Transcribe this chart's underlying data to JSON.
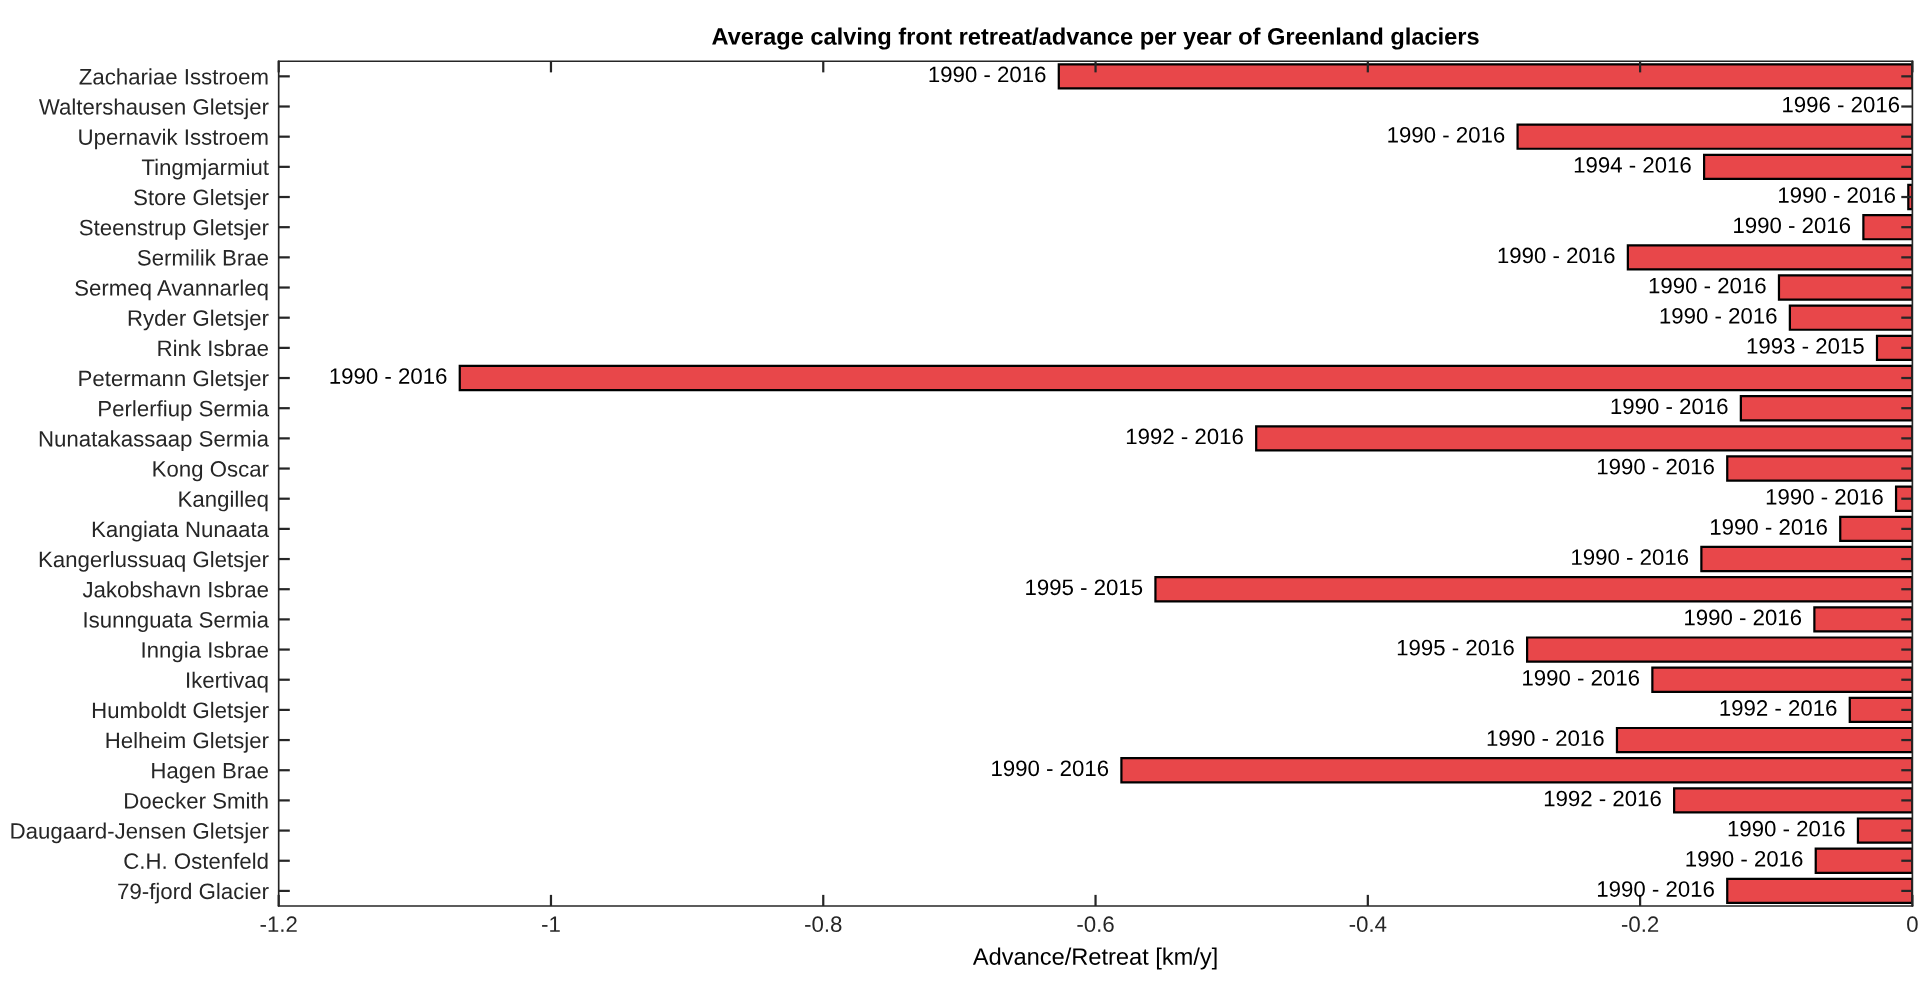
{
  "chart_data": {
    "type": "bar",
    "orientation": "horizontal",
    "title": "Average calving front retreat/advance per year of Greenland glaciers",
    "xlabel": "Advance/Retreat [km/y]",
    "categories": [
      "Zachariae Isstroem",
      "Waltershausen Gletsjer",
      "Upernavik Isstroem",
      "Tingmjarmiut",
      "Store Gletsjer",
      "Steenstrup Gletsjer",
      "Sermilik Brae",
      "Sermeq Avannarleq",
      "Ryder Gletsjer",
      "Rink Isbrae",
      "Petermann Gletsjer",
      "Perlerfiup Sermia",
      "Nunatakassaap Sermia",
      "Kong Oscar",
      "Kangilleq",
      "Kangiata Nunaata",
      "Kangerlussuaq Gletsjer",
      "Jakobshavn Isbrae",
      "Isunnguata Sermia",
      "Inngia Isbrae",
      "Ikertivaq",
      "Humboldt Gletsjer",
      "Helheim Gletsjer",
      "Hagen Brae",
      "Doecker Smith",
      "Daugaard-Jensen Gletsjer",
      "C.H. Ostenfeld",
      "79-fjord Glacier"
    ],
    "values": [
      -0.627,
      null,
      -0.29,
      -0.153,
      -0.003,
      -0.036,
      -0.209,
      -0.098,
      -0.09,
      -0.026,
      -1.067,
      -0.126,
      -0.482,
      -0.136,
      -0.012,
      -0.053,
      -0.155,
      -0.556,
      -0.072,
      -0.283,
      -0.191,
      -0.046,
      -0.217,
      -0.581,
      -0.175,
      -0.04,
      -0.071,
      -0.136
    ],
    "annotations": [
      {
        "text": "1990 - 2016",
        "x": -0.627,
        "y": "Zachariae Isstroem"
      },
      {
        "text": "1996 - 2016",
        "x": 0,
        "y": "Waltershausen Gletsjer"
      },
      {
        "text": "1990 - 2016",
        "x": -0.29,
        "y": "Upernavik Isstroem"
      },
      {
        "text": "1994 - 2016",
        "x": -0.153,
        "y": "Tingmjarmiut"
      },
      {
        "text": "1990 - 2016",
        "x": -0.003,
        "y": "Store Gletsjer"
      },
      {
        "text": "1990 - 2016",
        "x": -0.036,
        "y": "Steenstrup Gletsjer"
      },
      {
        "text": "1990 - 2016",
        "x": -0.209,
        "y": "Sermilik Brae"
      },
      {
        "text": "1990 - 2016",
        "x": -0.098,
        "y": "Sermeq Avannarleq"
      },
      {
        "text": "1990 - 2016",
        "x": -0.09,
        "y": "Ryder Gletsjer"
      },
      {
        "text": "1993 - 2015",
        "x": -0.026,
        "y": "Rink Isbrae"
      },
      {
        "text": "1990 - 2016",
        "x": -1.067,
        "y": "Petermann Gletsjer"
      },
      {
        "text": "1990 - 2016",
        "x": -0.126,
        "y": "Perlerfiup Sermia"
      },
      {
        "text": "1992 - 2016",
        "x": -0.482,
        "y": "Nunatakassaap Sermia"
      },
      {
        "text": "1990 - 2016",
        "x": -0.136,
        "y": "Kong Oscar"
      },
      {
        "text": "1990 - 2016",
        "x": -0.012,
        "y": "Kangilleq"
      },
      {
        "text": "1990 - 2016",
        "x": -0.053,
        "y": "Kangiata Nunaata"
      },
      {
        "text": "1990 - 2016",
        "x": -0.155,
        "y": "Kangerlussuaq Gletsjer"
      },
      {
        "text": "1995 - 2015",
        "x": -0.556,
        "y": "Jakobshavn Isbrae"
      },
      {
        "text": "1990 - 2016",
        "x": -0.072,
        "y": "Isunnguata Sermia"
      },
      {
        "text": "1995 - 2016",
        "x": -0.283,
        "y": "Inngia Isbrae"
      },
      {
        "text": "1990 - 2016",
        "x": -0.191,
        "y": "Ikertivaq"
      },
      {
        "text": "1992 - 2016",
        "x": -0.046,
        "y": "Humboldt Gletsjer"
      },
      {
        "text": "1990 - 2016",
        "x": -0.217,
        "y": "Helheim Gletsjer"
      },
      {
        "text": "1990 - 2016",
        "x": -0.581,
        "y": "Hagen Brae"
      },
      {
        "text": "1992 - 2016",
        "x": -0.175,
        "y": "Doecker Smith"
      },
      {
        "text": "1990 - 2016",
        "x": -0.04,
        "y": "Daugaard-Jensen Gletsjer"
      },
      {
        "text": "1990 - 2016",
        "x": -0.071,
        "y": "C.H. Ostenfeld"
      },
      {
        "text": "1990 - 2016",
        "x": -0.136,
        "y": "79-fjord Glacier"
      }
    ],
    "color": "#e8474a",
    "xlim": [
      -1.2,
      0
    ],
    "xticks": [
      -1.2,
      -1,
      -0.8,
      -0.6,
      -0.4,
      -0.2,
      0
    ],
    "grid": false
  }
}
